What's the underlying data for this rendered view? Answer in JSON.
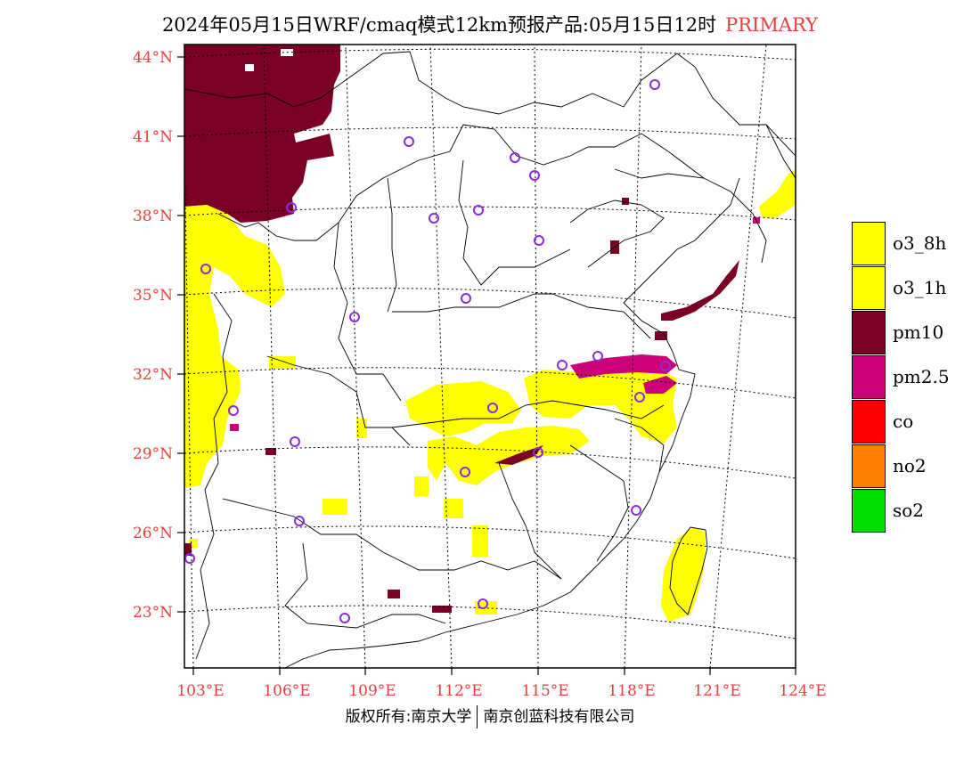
{
  "title": {
    "main": "2024年05月15日WRF/cmaq模式12km预报产品:05月15日12时",
    "tag": "PRIMARY"
  },
  "axes": {
    "lat_labels": [
      "44°N",
      "41°N",
      "38°N",
      "35°N",
      "32°N",
      "29°N",
      "26°N",
      "23°N"
    ],
    "lon_labels": [
      "103°E",
      "106°E",
      "109°E",
      "112°E",
      "115°E",
      "118°E",
      "121°E",
      "124°E"
    ]
  },
  "legend": [
    {
      "label": "o3_8h",
      "color": "#ffff00"
    },
    {
      "label": "o3_1h",
      "color": "#ffff00"
    },
    {
      "label": "pm10",
      "color": "#7a0026"
    },
    {
      "label": "pm2.5",
      "color": "#cc0077"
    },
    {
      "label": "co",
      "color": "#ff0000"
    },
    {
      "label": "no2",
      "color": "#ff8000"
    },
    {
      "label": "so2",
      "color": "#00dd00"
    }
  ],
  "footer": {
    "left": "版权所有:南京大学",
    "right": "南京创蓝科技有限公司"
  },
  "colors": {
    "accent": "#e8403a",
    "o3": "#ffff00",
    "pm10": "#7a0026",
    "pm25": "#cc0077",
    "station_marker": "#8a2be2"
  }
}
